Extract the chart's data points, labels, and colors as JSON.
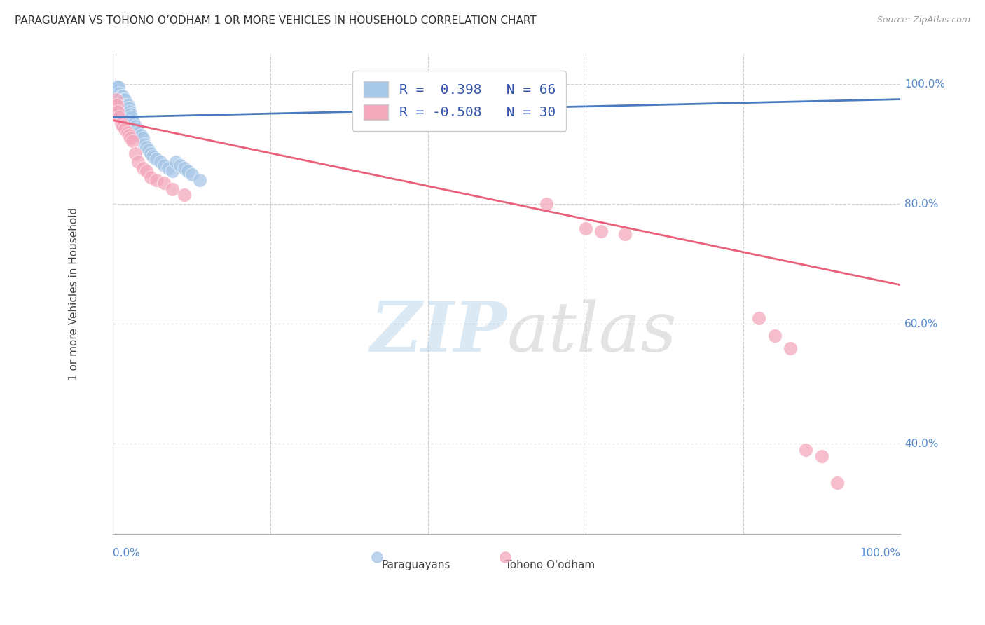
{
  "title": "PARAGUAYAN VS TOHONO O’ODHAM 1 OR MORE VEHICLES IN HOUSEHOLD CORRELATION CHART",
  "source": "Source: ZipAtlas.com",
  "ylabel": "1 or more Vehicles in Household",
  "legend_blue_r": "R =  0.398",
  "legend_blue_n": "N = 66",
  "legend_pink_r": "R = -0.508",
  "legend_pink_n": "N = 30",
  "blue_color": "#a8c8e8",
  "pink_color": "#f4a8bc",
  "blue_line_color": "#4a7abf",
  "pink_line_color": "#e8607a",
  "grid_color": "#d0d0d0",
  "blue_scatter_x": [
    0.002,
    0.002,
    0.003,
    0.003,
    0.003,
    0.003,
    0.004,
    0.004,
    0.004,
    0.004,
    0.005,
    0.005,
    0.005,
    0.005,
    0.006,
    0.006,
    0.006,
    0.007,
    0.007,
    0.007,
    0.008,
    0.008,
    0.009,
    0.009,
    0.01,
    0.01,
    0.011,
    0.011,
    0.012,
    0.012,
    0.013,
    0.013,
    0.014,
    0.015,
    0.015,
    0.016,
    0.017,
    0.018,
    0.019,
    0.02,
    0.021,
    0.022,
    0.023,
    0.025,
    0.026,
    0.028,
    0.03,
    0.032,
    0.035,
    0.038,
    0.04,
    0.042,
    0.045,
    0.048,
    0.05,
    0.055,
    0.06,
    0.065,
    0.07,
    0.075,
    0.08,
    0.085,
    0.09,
    0.095,
    0.1,
    0.11
  ],
  "blue_scatter_y": [
    0.975,
    0.985,
    0.97,
    0.98,
    0.99,
    0.995,
    0.96,
    0.975,
    0.985,
    0.995,
    0.965,
    0.975,
    0.985,
    0.995,
    0.96,
    0.975,
    0.99,
    0.965,
    0.98,
    0.995,
    0.97,
    0.985,
    0.96,
    0.975,
    0.965,
    0.98,
    0.96,
    0.975,
    0.965,
    0.98,
    0.96,
    0.975,
    0.965,
    0.96,
    0.975,
    0.965,
    0.96,
    0.96,
    0.965,
    0.96,
    0.955,
    0.95,
    0.945,
    0.94,
    0.935,
    0.93,
    0.925,
    0.92,
    0.915,
    0.91,
    0.9,
    0.895,
    0.89,
    0.885,
    0.88,
    0.875,
    0.87,
    0.865,
    0.86,
    0.855,
    0.87,
    0.865,
    0.86,
    0.855,
    0.85,
    0.84
  ],
  "pink_scatter_x": [
    0.004,
    0.005,
    0.006,
    0.008,
    0.01,
    0.012,
    0.015,
    0.018,
    0.02,
    0.022,
    0.025,
    0.028,
    0.032,
    0.038,
    0.042,
    0.048,
    0.055,
    0.065,
    0.075,
    0.09,
    0.55,
    0.6,
    0.62,
    0.65,
    0.82,
    0.84,
    0.86,
    0.88,
    0.9,
    0.92
  ],
  "pink_scatter_y": [
    0.975,
    0.965,
    0.955,
    0.945,
    0.935,
    0.93,
    0.925,
    0.92,
    0.915,
    0.91,
    0.905,
    0.885,
    0.87,
    0.86,
    0.855,
    0.845,
    0.84,
    0.835,
    0.825,
    0.815,
    0.8,
    0.76,
    0.755,
    0.75,
    0.61,
    0.58,
    0.56,
    0.39,
    0.38,
    0.335
  ],
  "blue_trend_x": [
    0.0,
    1.0
  ],
  "blue_trend_y": [
    0.945,
    0.975
  ],
  "pink_trend_x": [
    0.0,
    1.0
  ],
  "pink_trend_y": [
    0.94,
    0.665
  ],
  "xlim": [
    0.0,
    1.0
  ],
  "ylim": [
    0.25,
    1.05
  ],
  "ytick_vals": [
    1.0,
    0.8,
    0.6,
    0.4
  ],
  "ytick_labels": [
    "100.0%",
    "80.0%",
    "60.0%",
    "40.0%"
  ],
  "xtick_vals": [
    0.0,
    1.0
  ],
  "xtick_labels": [
    "0.0%",
    "100.0%"
  ]
}
